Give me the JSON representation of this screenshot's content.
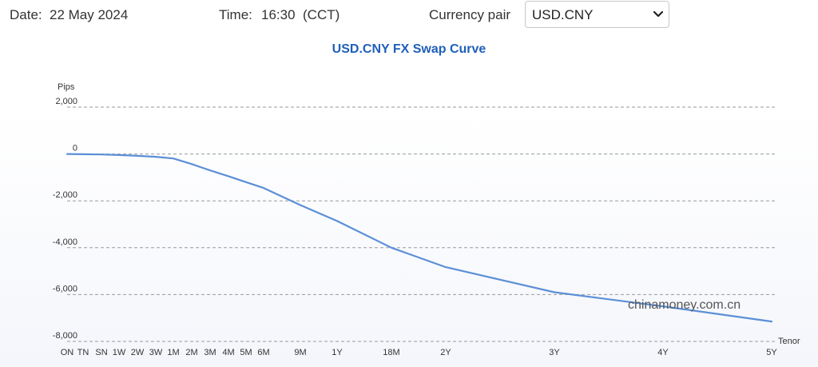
{
  "header": {
    "date_label": "Date:",
    "date_value": "22 May 2024",
    "time_label": "Time:",
    "time_value": "16:30",
    "time_zone": "(CCT)",
    "pair_label": "Currency pair",
    "pair_selected": "USD.CNY"
  },
  "watermark": "chinamoney.com.cn",
  "chart_data": {
    "type": "line",
    "title": "USD.CNY FX Swap Curve",
    "ylabel": "Pips",
    "xlabel": "Tenor",
    "ylim": [
      -8000,
      2000
    ],
    "yticks": [
      2000,
      0,
      -2000,
      -4000,
      -6000,
      -8000
    ],
    "ytick_labels": [
      "2,000",
      "0",
      "-2,000",
      "-4,000",
      "-6,000",
      "-8,000"
    ],
    "grid": true,
    "categories": [
      "ON",
      "TN",
      "SN",
      "1W",
      "2W",
      "3W",
      "1M",
      "2M",
      "3M",
      "4M",
      "5M",
      "6M",
      "9M",
      "1Y",
      "18M",
      "2Y",
      "3Y",
      "4Y",
      "5Y"
    ],
    "tenor_months": [
      0,
      0.03,
      0.07,
      0.25,
      0.5,
      0.75,
      1,
      2,
      3,
      4,
      5,
      6,
      9,
      12,
      18,
      24,
      36,
      48,
      60
    ],
    "series": [
      {
        "color": "#5b8fd6",
        "values": [
          0,
          -10,
          -20,
          -45,
          -80,
          -120,
          -190,
          -430,
          -700,
          -950,
          -1200,
          -1450,
          -2180,
          -2860,
          -4000,
          -4830,
          -5900,
          -6500,
          -7150
        ]
      }
    ]
  }
}
